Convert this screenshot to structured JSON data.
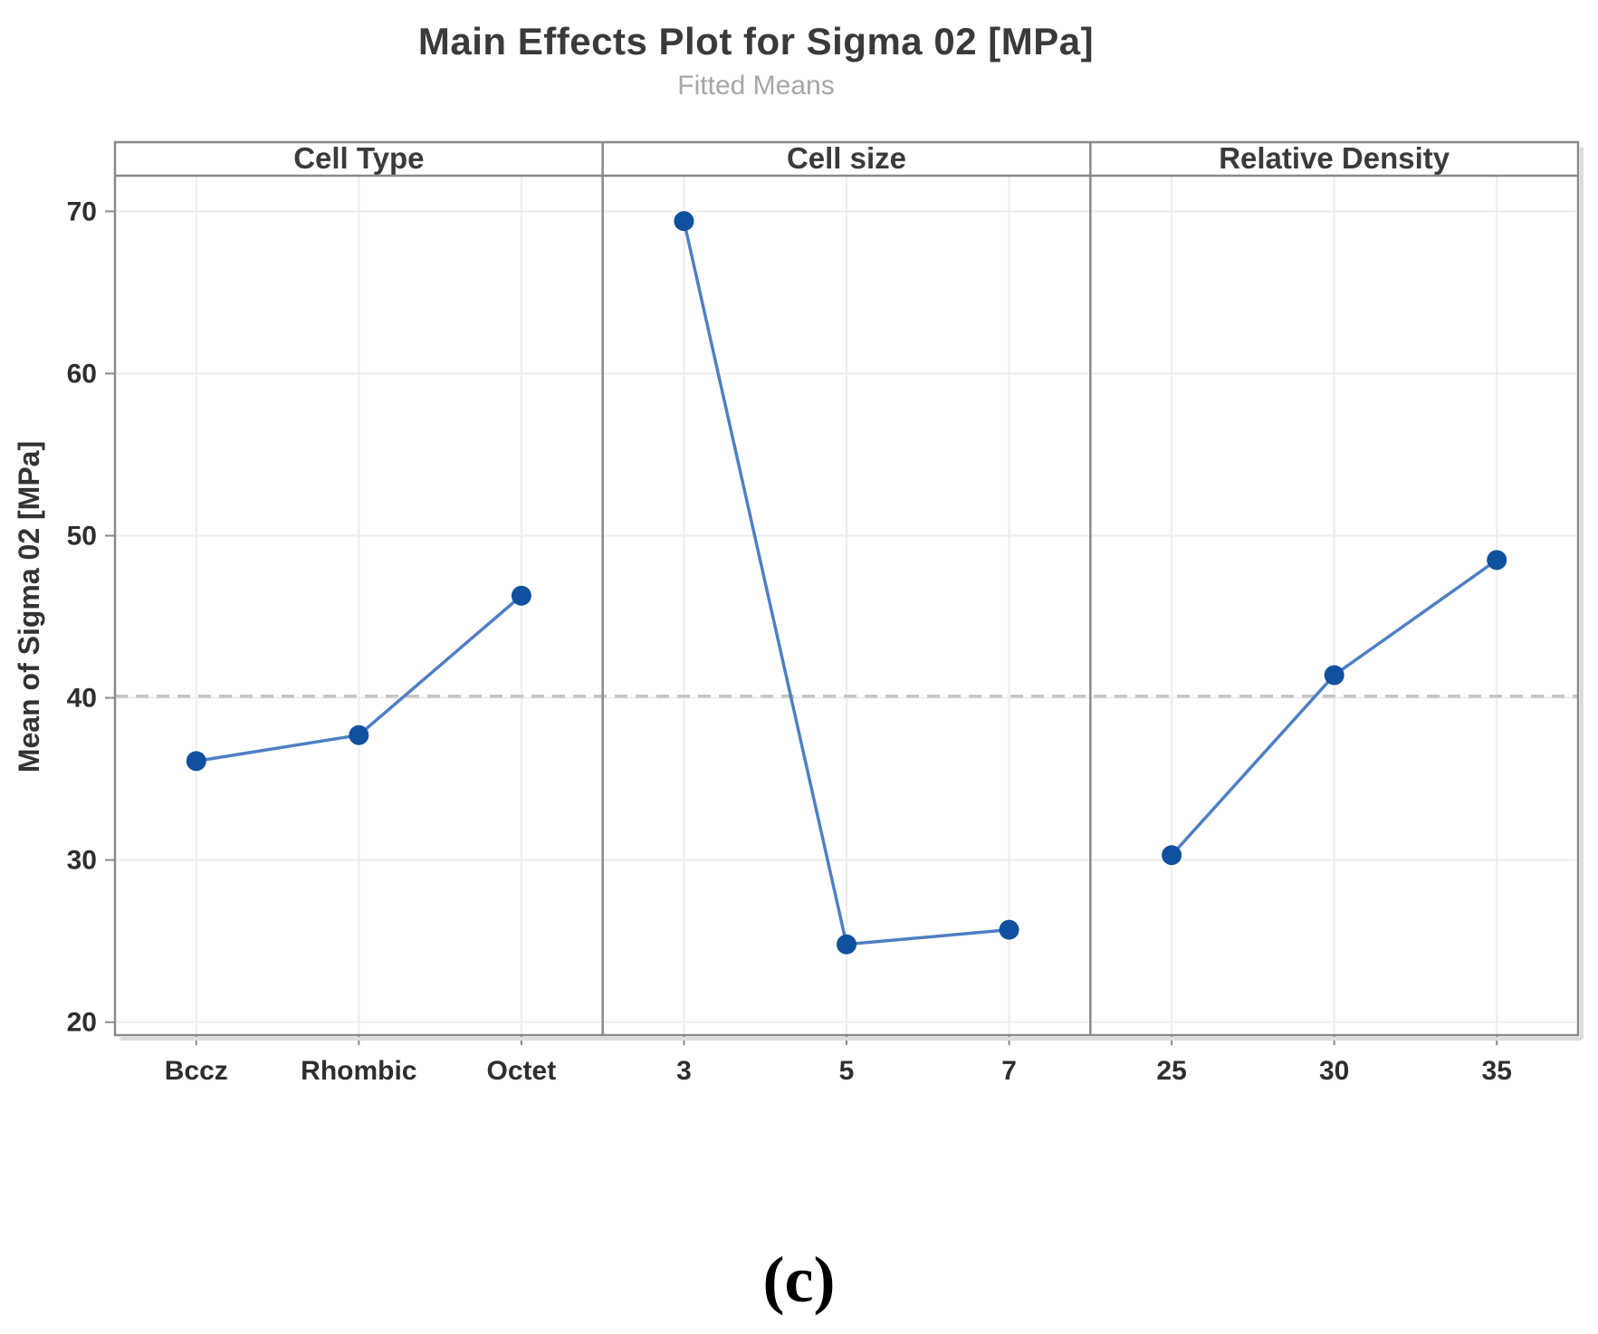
{
  "title": "Main Effects Plot for Sigma 02 [MPa]",
  "subtitle": "Fitted Means",
  "ylabel": "Mean of Sigma 02 [MPa]",
  "caption": "(c)",
  "chart_data": {
    "type": "line",
    "title": "Main Effects Plot for Sigma 02 [MPa]",
    "subtitle": "Fitted Means",
    "ylabel": "Mean of Sigma 02 [MPa]",
    "ylim": [
      19.2,
      72.2
    ],
    "yticks": [
      20,
      30,
      40,
      50,
      60,
      70
    ],
    "grid": true,
    "legend": "none",
    "reference_line_value": 40.1,
    "panels": [
      {
        "header": "Cell Type",
        "categories": [
          "Bccz",
          "Rhombic",
          "Octet"
        ],
        "values": [
          36.1,
          37.7,
          46.3
        ]
      },
      {
        "header": "Cell size",
        "categories": [
          "3",
          "5",
          "7"
        ],
        "values": [
          69.4,
          24.8,
          25.7
        ]
      },
      {
        "header": "Relative Density",
        "categories": [
          "25",
          "30",
          "35"
        ],
        "values": [
          30.3,
          41.4,
          48.5
        ]
      }
    ],
    "colors": {
      "point": "#10519F",
      "line": "#4F7FC4",
      "reference_line": "#C6C6C6",
      "gridline": "#EDEDED",
      "border": "#8A8A8A",
      "shadow": "#DCDCDC"
    }
  }
}
